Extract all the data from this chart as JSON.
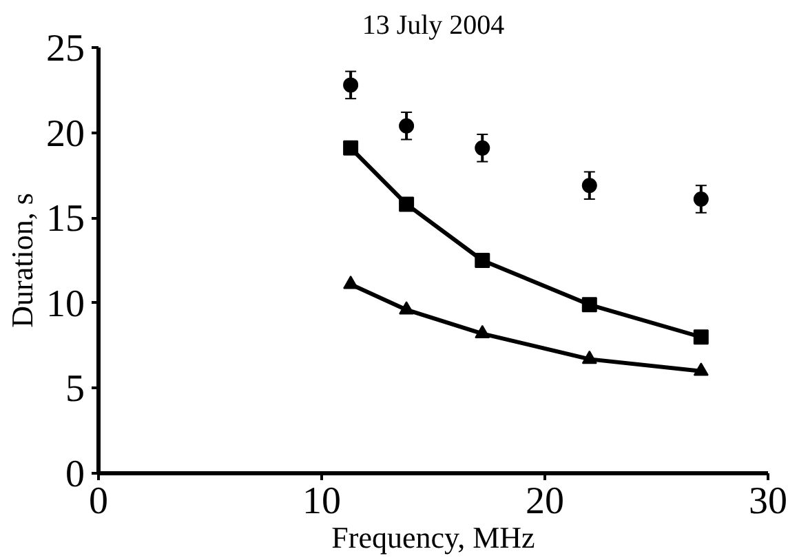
{
  "chart_data": {
    "type": "line",
    "title": "13 July 2004",
    "xlabel": "Frequency, MHz",
    "ylabel": "Duration, s",
    "xlim": [
      0,
      30
    ],
    "xticks": [
      0,
      10,
      20,
      30
    ],
    "ylim": [
      0,
      25
    ],
    "yticks": [
      0,
      5,
      10,
      15,
      20,
      25
    ],
    "grid": false,
    "series": [
      {
        "type": "scatter",
        "marker": "circle",
        "color": "#000000",
        "x": [
          11.3,
          13.8,
          17.2,
          22.0,
          27.0
        ],
        "values": [
          22.8,
          20.4,
          19.1,
          16.9,
          16.1
        ],
        "errors": [
          0.8,
          0.8,
          0.8,
          0.8,
          0.8
        ]
      },
      {
        "marker": "square",
        "color": "#000000",
        "x": [
          11.3,
          13.8,
          17.2,
          22.0,
          27.0
        ],
        "values": [
          19.1,
          15.8,
          12.5,
          9.9,
          8.0
        ]
      },
      {
        "marker": "triangle",
        "color": "#000000",
        "x": [
          11.3,
          13.8,
          17.2,
          22.0,
          27.0
        ],
        "values": [
          11.1,
          9.6,
          8.2,
          6.7,
          6.0
        ]
      }
    ]
  }
}
